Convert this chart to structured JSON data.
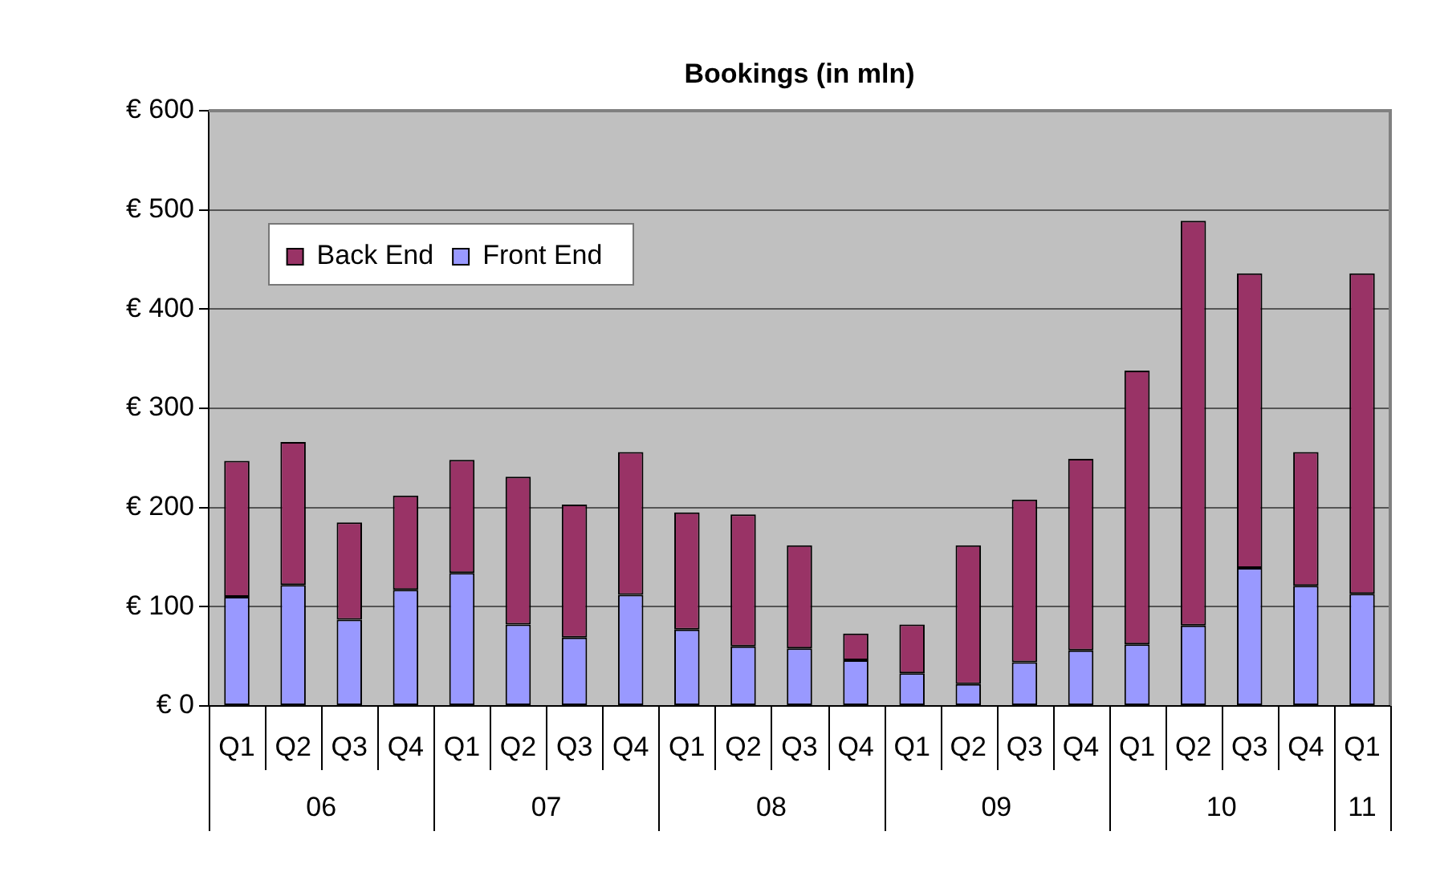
{
  "chart_data": {
    "type": "bar",
    "title": "Bookings (in mln)",
    "stacked": true,
    "categories": [
      "Q1",
      "Q2",
      "Q3",
      "Q4",
      "Q1",
      "Q2",
      "Q3",
      "Q4",
      "Q1",
      "Q2",
      "Q3",
      "Q4",
      "Q1",
      "Q2",
      "Q3",
      "Q4",
      "Q1",
      "Q2",
      "Q3",
      "Q4",
      "Q1"
    ],
    "series": [
      {
        "name": "Front End",
        "color": "#9999ff",
        "values": [
          110,
          122,
          87,
          117,
          134,
          82,
          69,
          112,
          77,
          60,
          58,
          46,
          33,
          22,
          44,
          56,
          62,
          81,
          139,
          121,
          113
        ]
      },
      {
        "name": "Back End",
        "color": "#993366",
        "values": [
          137,
          144,
          98,
          95,
          114,
          149,
          134,
          144,
          118,
          133,
          104,
          27,
          49,
          140,
          164,
          193,
          276,
          408,
          297,
          135,
          323
        ]
      }
    ],
    "annotations": [
      "06",
      "07",
      "08",
      "09",
      "10",
      "11"
    ],
    "ylim": [
      0,
      600
    ],
    "yticks": [
      {
        "value": 0,
        "label": "€ 0"
      },
      {
        "value": 100,
        "label": "€ 100"
      },
      {
        "value": 200,
        "label": "€ 200"
      },
      {
        "value": 300,
        "label": "€ 300"
      },
      {
        "value": 400,
        "label": "€ 400"
      },
      {
        "value": 500,
        "label": "€ 500"
      },
      {
        "value": 600,
        "label": "€ 600"
      }
    ],
    "grid": "y",
    "legend": "top left"
  }
}
